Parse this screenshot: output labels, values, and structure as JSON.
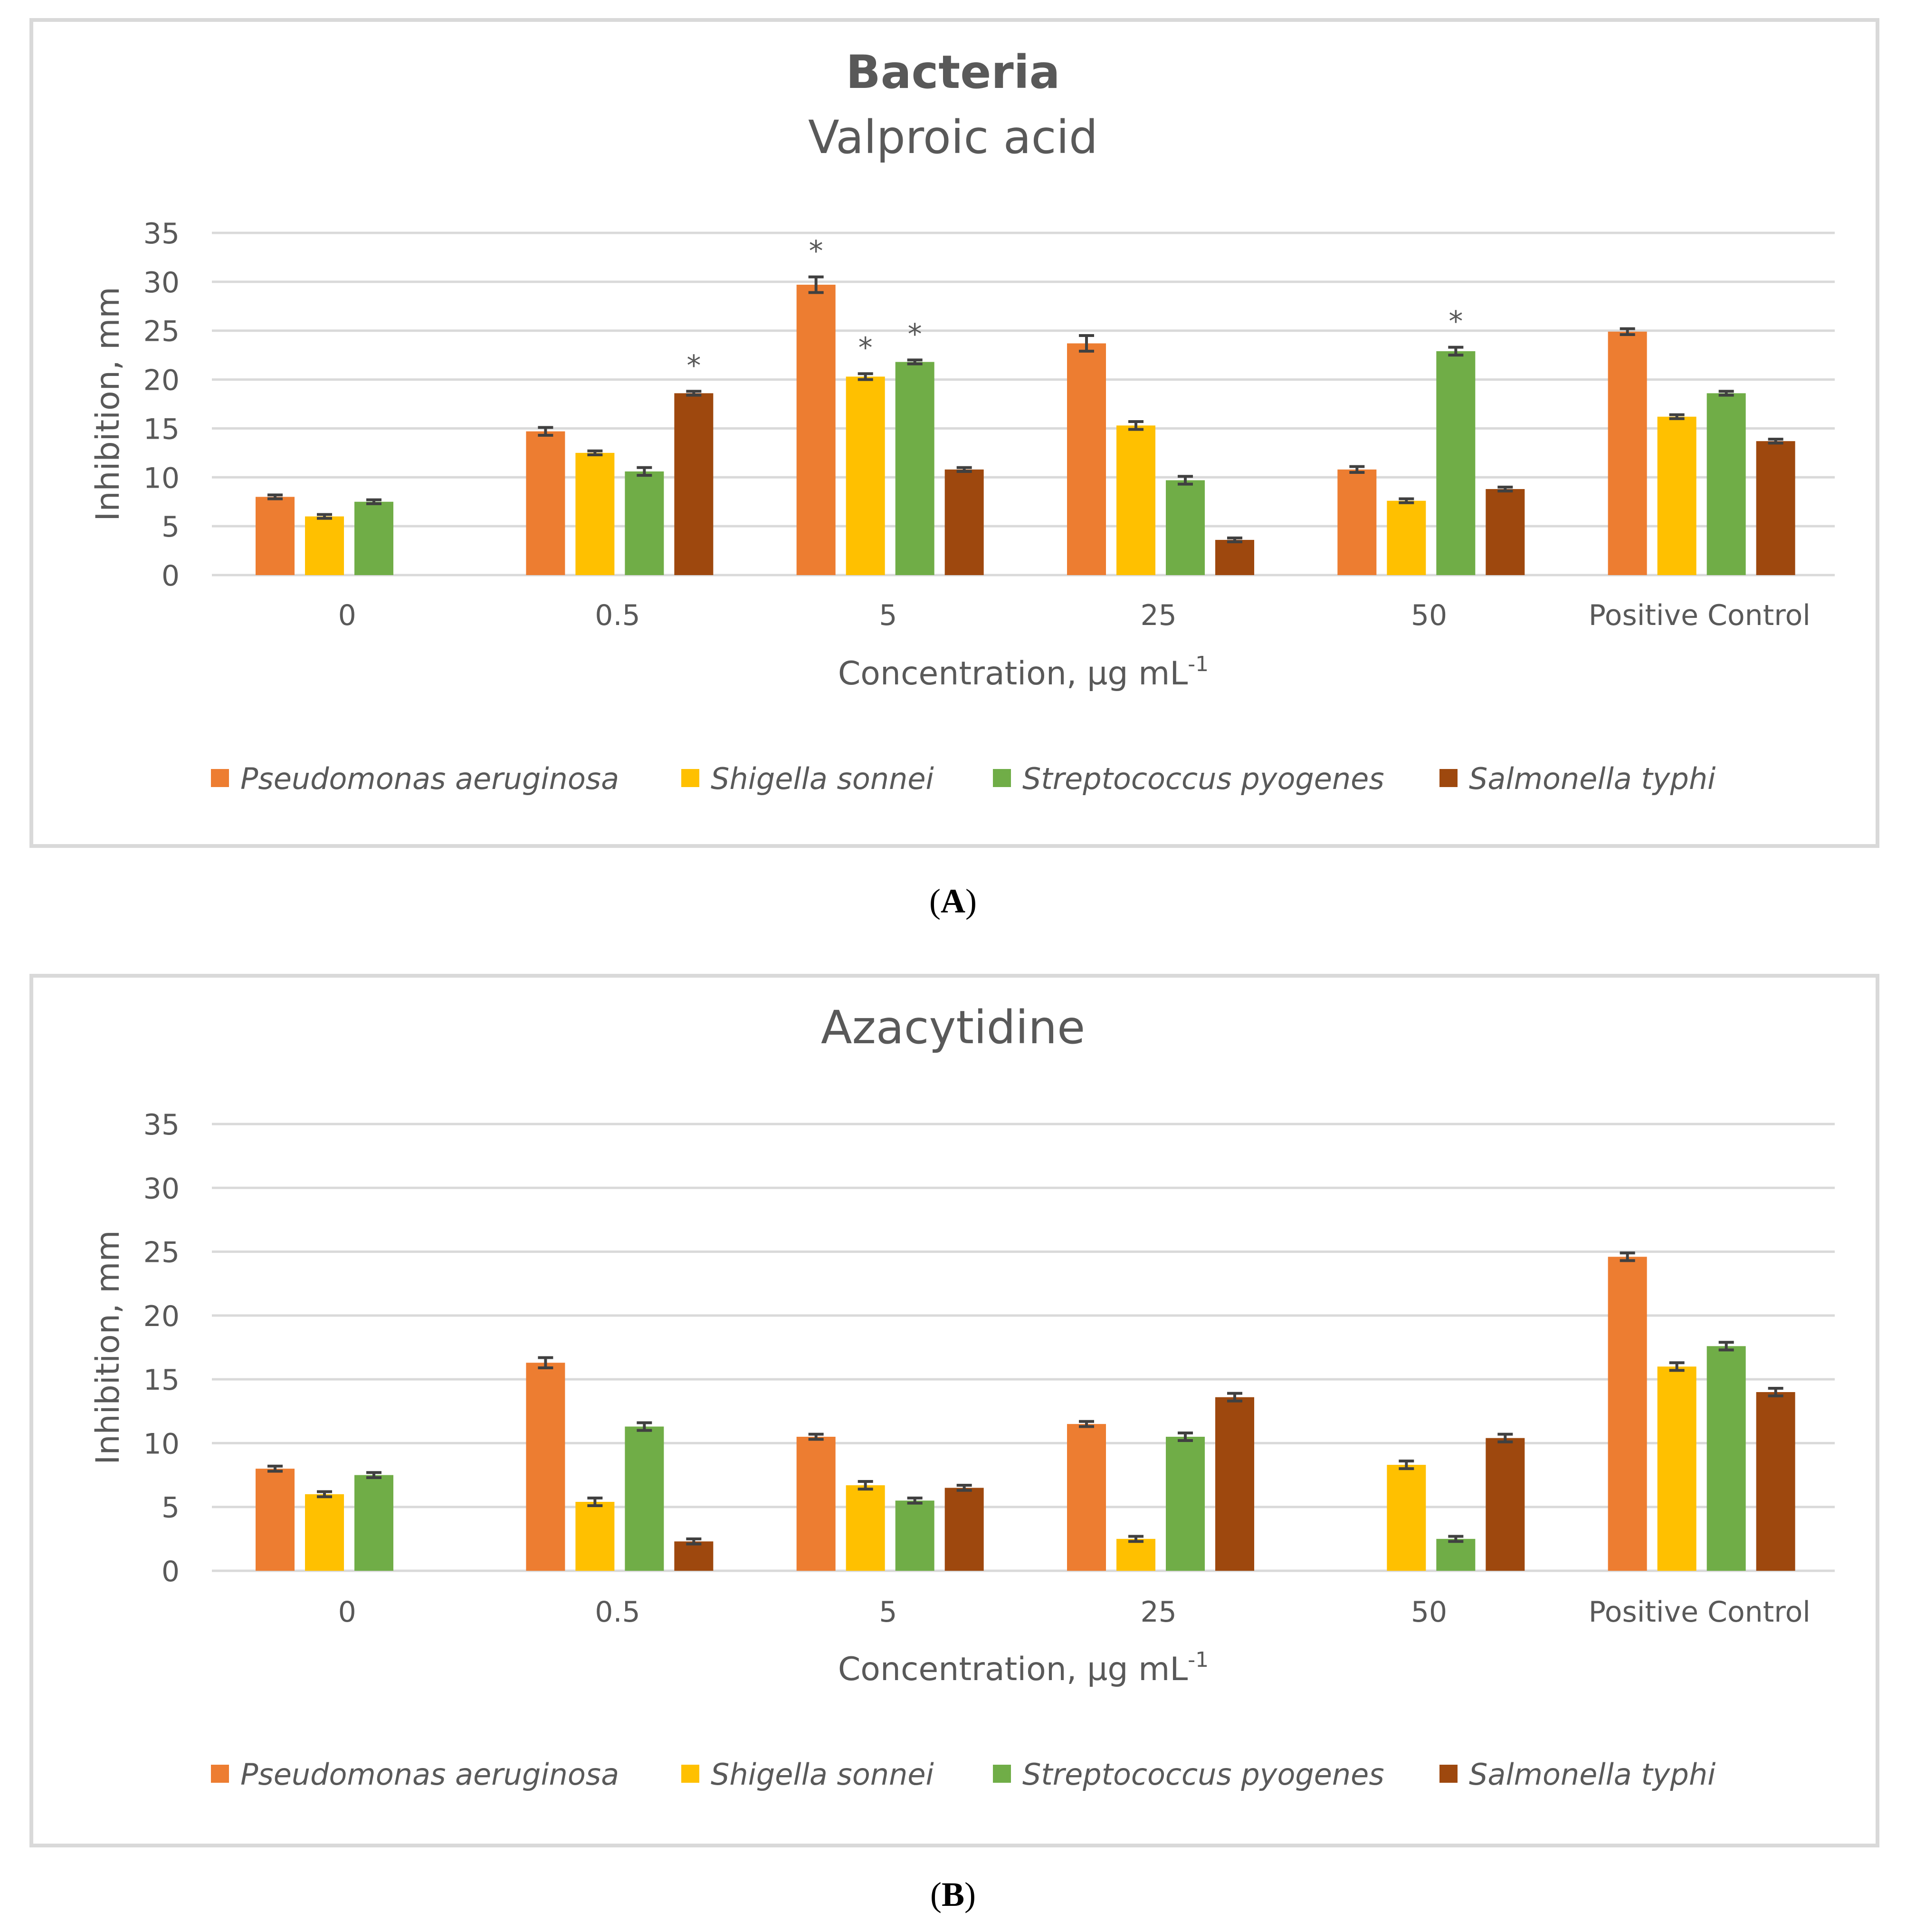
{
  "colors": {
    "series": [
      "#ED7D31",
      "#FFC000",
      "#70AD47",
      "#9E480E"
    ]
  },
  "chart_data": [
    {
      "type": "bar",
      "panel_label": "A",
      "title": "Bacteria",
      "subtitle": "Valproic acid",
      "xlabel": "Concentration, µg mL",
      "xlabel_sup": "-1",
      "ylabel": "Inhibition, mm",
      "ylim": [
        0,
        35
      ],
      "yticks": [
        0,
        5,
        10,
        15,
        20,
        25,
        30,
        35
      ],
      "grid": true,
      "legend_position": "bottom",
      "categories": [
        "0",
        "0.5",
        "5",
        "25",
        "50",
        "Positive Control"
      ],
      "series": [
        {
          "name": "Pseudomonas aeruginosa",
          "values": [
            8.0,
            14.7,
            29.7,
            23.7,
            10.8,
            24.9
          ],
          "errors": [
            0.2,
            0.4,
            0.8,
            0.8,
            0.3,
            0.3
          ],
          "sig": [
            false,
            false,
            true,
            false,
            false,
            false
          ]
        },
        {
          "name": "Shigella sonnei",
          "values": [
            6.0,
            12.5,
            20.3,
            15.3,
            7.6,
            16.2
          ],
          "errors": [
            0.2,
            0.2,
            0.3,
            0.4,
            0.2,
            0.2
          ],
          "sig": [
            false,
            false,
            true,
            false,
            false,
            false
          ]
        },
        {
          "name": "Streptococcus pyogenes",
          "values": [
            7.5,
            10.6,
            21.8,
            9.7,
            22.9,
            18.6
          ],
          "errors": [
            0.2,
            0.4,
            0.2,
            0.4,
            0.4,
            0.2
          ],
          "sig": [
            false,
            false,
            true,
            false,
            true,
            false
          ]
        },
        {
          "name": "Salmonella typhi",
          "values": [
            null,
            18.6,
            10.8,
            3.6,
            8.8,
            13.7
          ],
          "errors": [
            0,
            0.2,
            0.2,
            0.2,
            0.2,
            0.2
          ],
          "sig": [
            false,
            true,
            false,
            false,
            false,
            false
          ]
        }
      ],
      "sig_marker": "*"
    },
    {
      "type": "bar",
      "panel_label": "B",
      "title": "",
      "subtitle": "Azacytidine",
      "xlabel": "Concentration, µg mL",
      "xlabel_sup": "-1",
      "ylabel": "Inhibition, mm",
      "ylim": [
        0,
        35
      ],
      "yticks": [
        0,
        5,
        10,
        15,
        20,
        25,
        30,
        35
      ],
      "grid": true,
      "legend_position": "bottom",
      "categories": [
        "0",
        "0.5",
        "5",
        "25",
        "50",
        "Positive Control"
      ],
      "series": [
        {
          "name": "Pseudomonas aeruginosa",
          "values": [
            8.0,
            16.3,
            10.5,
            11.5,
            null,
            24.6
          ],
          "errors": [
            0.2,
            0.4,
            0.2,
            0.2,
            0,
            0.3
          ],
          "sig": [
            false,
            false,
            false,
            false,
            false,
            false
          ]
        },
        {
          "name": "Shigella sonnei",
          "values": [
            6.0,
            5.4,
            6.7,
            2.5,
            8.3,
            16.0
          ],
          "errors": [
            0.2,
            0.3,
            0.3,
            0.2,
            0.3,
            0.3
          ],
          "sig": [
            false,
            false,
            false,
            false,
            false,
            false
          ]
        },
        {
          "name": "Streptococcus pyogenes",
          "values": [
            7.5,
            11.3,
            5.5,
            10.5,
            2.5,
            17.6
          ],
          "errors": [
            0.2,
            0.3,
            0.2,
            0.3,
            0.2,
            0.3
          ],
          "sig": [
            false,
            false,
            false,
            false,
            false,
            false
          ]
        },
        {
          "name": "Salmonella typhi",
          "values": [
            null,
            2.3,
            6.5,
            13.6,
            10.4,
            14.0
          ],
          "errors": [
            0,
            0.2,
            0.2,
            0.3,
            0.3,
            0.3
          ],
          "sig": [
            false,
            false,
            false,
            false,
            false,
            false
          ]
        }
      ],
      "sig_marker": "*"
    }
  ]
}
